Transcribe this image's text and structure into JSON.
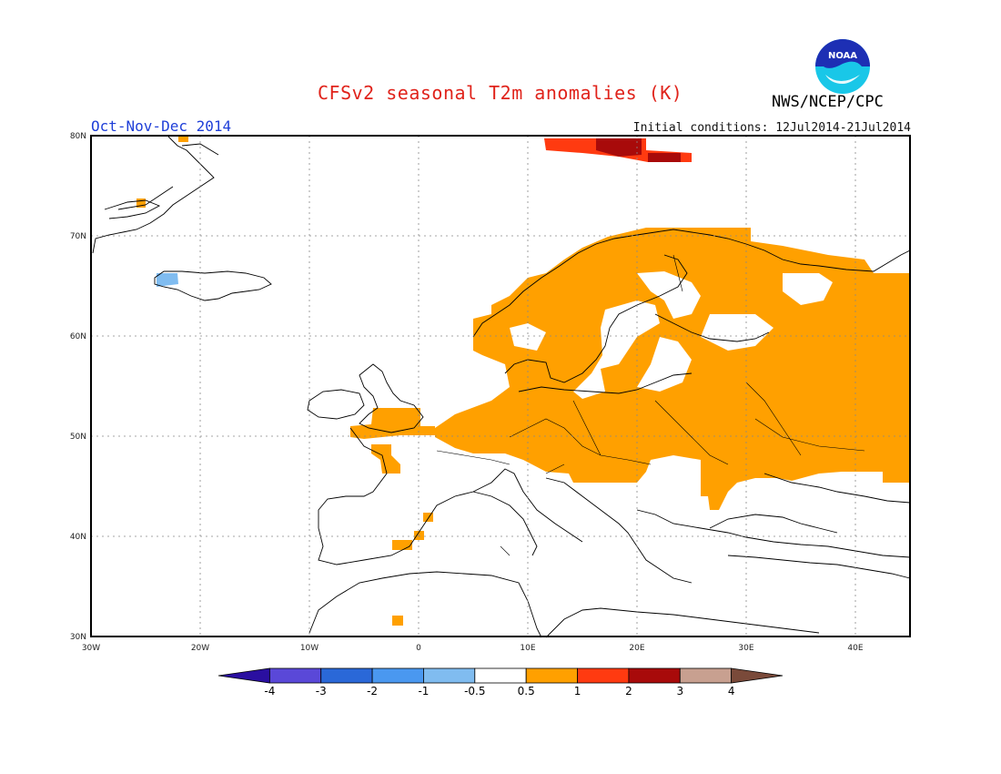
{
  "header": {
    "title": "CFSv2 seasonal T2m anomalies (K)",
    "agency": "NWS/NCEP/CPC",
    "period": "Oct-Nov-Dec 2014",
    "initial_conditions": "Initial conditions: 12Jul2014-21Jul2014",
    "logo_text": "NOAA"
  },
  "map": {
    "lon_labels": [
      "30W",
      "20W",
      "10W",
      "0",
      "10E",
      "20E",
      "30E",
      "40E"
    ],
    "lat_labels": [
      "80N",
      "70N",
      "60N",
      "50N",
      "40N",
      "30N"
    ],
    "lon_range": [
      -30,
      45
    ],
    "lat_range": [
      30,
      80
    ]
  },
  "legend": {
    "tick_labels": [
      "-4",
      "-3",
      "-2",
      "-1",
      "-0.5",
      "0.5",
      "1",
      "2",
      "3",
      "4"
    ],
    "colors": [
      "#2a0fa0",
      "#5a48d8",
      "#2a68d8",
      "#4a98f0",
      "#80bcf0",
      "#ffffff",
      "#ffa000",
      "#ff3a10",
      "#a80a0a",
      "#c8a090",
      "#7a4a3a"
    ]
  },
  "colors": {
    "anomaly_05_1": "#ffa000",
    "anomaly_1_2": "#ff3a10",
    "anomaly_2_3": "#a80a0a",
    "anomaly_neg": "#80bcf0"
  }
}
